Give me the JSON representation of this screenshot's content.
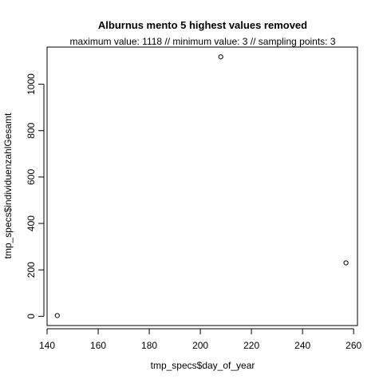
{
  "chart_data": {
    "type": "scatter",
    "title": "Alburnus mento  5 highest values removed",
    "subtitle": "maximum value: 1118  //  minimum value: 3  // sampling points: 3",
    "xlabel": "tmp_specs$day_of_year",
    "ylabel": "tmp_specs$individuenzahlGesamt",
    "xlim": [
      140,
      261.5
    ],
    "ylim": [
      -40,
      1160
    ],
    "xticks": [
      140,
      160,
      180,
      200,
      220,
      240,
      260
    ],
    "yticks": [
      0,
      200,
      400,
      600,
      800,
      1000
    ],
    "points": [
      {
        "x": 144,
        "y": 3
      },
      {
        "x": 208,
        "y": 1118
      },
      {
        "x": 257,
        "y": 230
      }
    ],
    "marker_color": "#000000"
  }
}
